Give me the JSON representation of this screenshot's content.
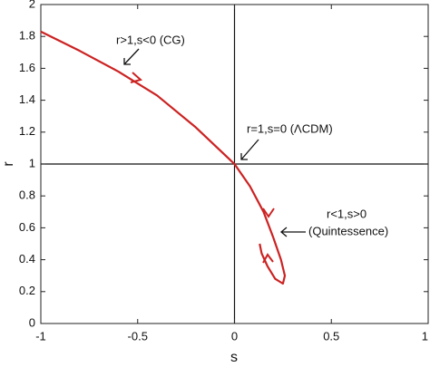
{
  "chart_data": {
    "type": "line",
    "x": [
      -1,
      -0.8,
      -0.6,
      -0.4,
      -0.2,
      0,
      0.08,
      0.15,
      0.2,
      0.24,
      0.26,
      0.25,
      0.21,
      0.17,
      0.14,
      0.13
    ],
    "values": [
      1.83,
      1.71,
      1.58,
      1.43,
      1.23,
      1,
      0.86,
      0.7,
      0.54,
      0.4,
      0.3,
      0.25,
      0.28,
      0.36,
      0.44,
      0.5
    ],
    "color": "#cc2222",
    "xlabel": "s",
    "ylabel": "r",
    "xlim": [
      -1,
      1
    ],
    "ylim": [
      0,
      2
    ],
    "xticks": [
      -1,
      -0.5,
      0,
      0.5,
      1
    ],
    "yticks": [
      0,
      0.2,
      0.4,
      0.6,
      0.8,
      1,
      1.2,
      1.4,
      1.6,
      1.8,
      2
    ],
    "hline": 1,
    "vline": 0,
    "annotations": [
      "r>1,s<0 (CG)",
      "r=1,s=0 (ΛCDM)",
      "r<1,s>0",
      "(Quintessence)"
    ]
  }
}
